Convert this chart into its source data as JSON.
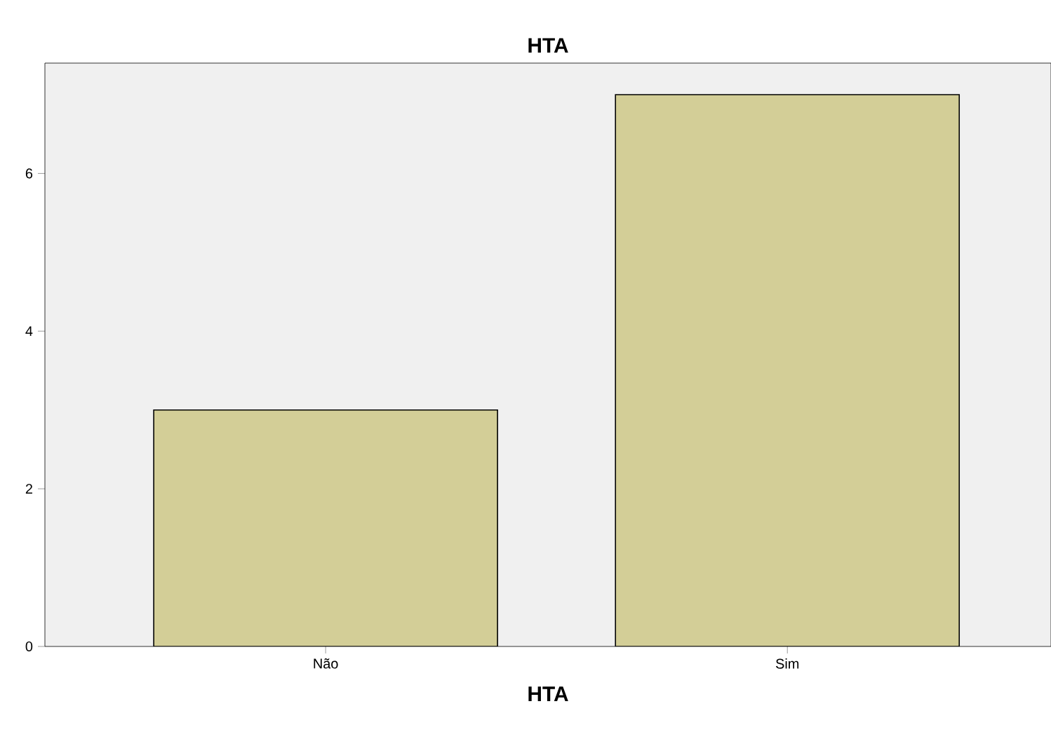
{
  "chart_data": {
    "type": "bar",
    "title": "HTA",
    "xlabel": "HTA",
    "categories": [
      "Não",
      "Sim"
    ],
    "values": [
      3,
      7
    ],
    "color": "#d3ce97",
    "ylim": [
      0,
      7.4
    ],
    "yticks": [
      0,
      2,
      4,
      6
    ]
  }
}
